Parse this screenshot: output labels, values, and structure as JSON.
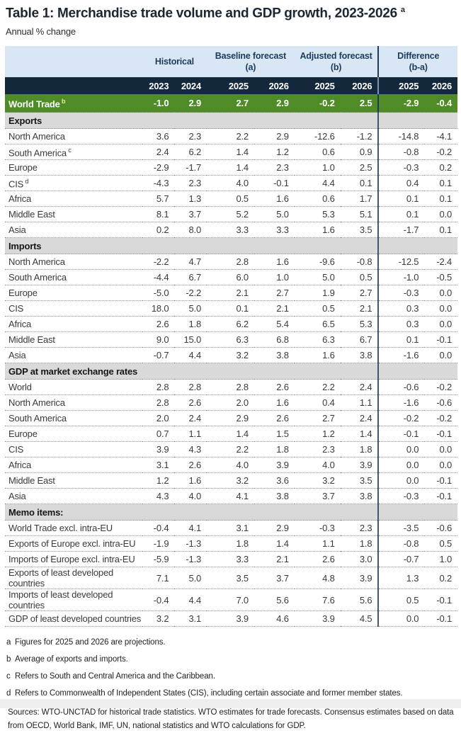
{
  "title": "Table 1: Merchandise trade volume and GDP growth, 2023-2026",
  "title_superscript": "a",
  "subtitle": "Annual % change",
  "table": {
    "col_groups": [
      {
        "label": "Historical",
        "sub": ""
      },
      {
        "label": "Baseline forecast",
        "sub": "(a)"
      },
      {
        "label": "Adjusted forecast",
        "sub": "(b)"
      },
      {
        "label": "Difference",
        "sub": "(b-a)"
      }
    ],
    "years": [
      "2023",
      "2024",
      "2025",
      "2026",
      "2025",
      "2026",
      "2025",
      "2026"
    ],
    "world_trade": {
      "label": "World Trade",
      "superscript": "b",
      "values": [
        "-1.0",
        "2.9",
        "2.7",
        "2.9",
        "-0.2",
        "2.5",
        "-2.9",
        "-0.4"
      ]
    },
    "sections": [
      {
        "header": "Exports",
        "rows": [
          {
            "label": "North America",
            "superscript": "",
            "values": [
              "3.6",
              "2.3",
              "2.2",
              "2.9",
              "-12.6",
              "-1.2",
              "-14.8",
              "-4.1"
            ]
          },
          {
            "label": "South America",
            "superscript": "c",
            "values": [
              "2.4",
              "6.2",
              "1.4",
              "1.2",
              "0.6",
              "0.9",
              "-0.8",
              "-0.2"
            ]
          },
          {
            "label": "Europe",
            "superscript": "",
            "values": [
              "-2.9",
              "-1.7",
              "1.4",
              "2.3",
              "1.0",
              "2.5",
              "-0.3",
              "0.2"
            ]
          },
          {
            "label": "CIS",
            "superscript": "d",
            "values": [
              "-4.3",
              "2.3",
              "4.0",
              "-0.1",
              "4.4",
              "0.1",
              "0.4",
              "0.1"
            ]
          },
          {
            "label": "Africa",
            "superscript": "",
            "values": [
              "5.7",
              "1.3",
              "0.5",
              "1.6",
              "0.6",
              "1.7",
              "0.1",
              "0.1"
            ]
          },
          {
            "label": "Middle East",
            "superscript": "",
            "values": [
              "8.1",
              "3.7",
              "5.2",
              "5.0",
              "5.3",
              "5.1",
              "0.1",
              "0.0"
            ]
          },
          {
            "label": "Asia",
            "superscript": "",
            "values": [
              "0.2",
              "8.0",
              "3.3",
              "3.3",
              "1.6",
              "3.5",
              "-1.7",
              "0.1"
            ]
          }
        ]
      },
      {
        "header": "Imports",
        "rows": [
          {
            "label": "North America",
            "superscript": "",
            "values": [
              "-2.2",
              "4.7",
              "2.8",
              "1.6",
              "-9.6",
              "-0.8",
              "-12.5",
              "-2.4"
            ]
          },
          {
            "label": "South America",
            "superscript": "",
            "values": [
              "-4.4",
              "6.7",
              "6.0",
              "1.0",
              "5.0",
              "0.5",
              "-1.0",
              "-0.5"
            ]
          },
          {
            "label": "Europe",
            "superscript": "",
            "values": [
              "-5.0",
              "-2.2",
              "2.1",
              "2.7",
              "1.9",
              "2.7",
              "-0.3",
              "0.0"
            ]
          },
          {
            "label": "CIS",
            "superscript": "",
            "values": [
              "18.0",
              "5.0",
              "0.1",
              "2.1",
              "0.5",
              "2.1",
              "0.3",
              "0.0"
            ]
          },
          {
            "label": "Africa",
            "superscript": "",
            "values": [
              "2.6",
              "1.8",
              "6.2",
              "5.4",
              "6.5",
              "5.3",
              "0.3",
              "0.0"
            ]
          },
          {
            "label": "Middle East",
            "superscript": "",
            "values": [
              "9.0",
              "15.0",
              "6.3",
              "6.8",
              "6.3",
              "6.7",
              "0.1",
              "-0.1"
            ]
          },
          {
            "label": "Asia",
            "superscript": "",
            "values": [
              "-0.7",
              "4.4",
              "3.2",
              "3.8",
              "1.6",
              "3.8",
              "-1.6",
              "0.0"
            ]
          }
        ]
      },
      {
        "header": "GDP at market exchange rates",
        "rows": [
          {
            "label": "World",
            "superscript": "",
            "values": [
              "2.8",
              "2.8",
              "2.8",
              "2.6",
              "2.2",
              "2.4",
              "-0.6",
              "-0.2"
            ]
          },
          {
            "label": "North America",
            "superscript": "",
            "values": [
              "2.8",
              "2.6",
              "2.0",
              "1.6",
              "0.4",
              "1.1",
              "-1.6",
              "-0.6"
            ]
          },
          {
            "label": "South America",
            "superscript": "",
            "values": [
              "2.0",
              "2.4",
              "2.9",
              "2.6",
              "2.7",
              "2.4",
              "-0.2",
              "-0.2"
            ]
          },
          {
            "label": "Europe",
            "superscript": "",
            "values": [
              "0.7",
              "1.1",
              "1.4",
              "1.5",
              "1.2",
              "1.4",
              "-0.1",
              "-0.1"
            ]
          },
          {
            "label": "CIS",
            "superscript": "",
            "values": [
              "3.9",
              "4.3",
              "2.2",
              "1.8",
              "2.3",
              "1.8",
              "0.0",
              "0.0"
            ]
          },
          {
            "label": "Africa",
            "superscript": "",
            "values": [
              "3.1",
              "2.6",
              "4.0",
              "3.9",
              "4.0",
              "3.9",
              "0.0",
              "0.0"
            ]
          },
          {
            "label": "Middle East",
            "superscript": "",
            "values": [
              "1.2",
              "1.6",
              "3.2",
              "3.6",
              "3.2",
              "3.5",
              "0.0",
              "-0.1"
            ]
          },
          {
            "label": "Asia",
            "superscript": "",
            "values": [
              "4.3",
              "4.0",
              "4.1",
              "3.8",
              "3.7",
              "3.8",
              "-0.3",
              "-0.1"
            ]
          }
        ]
      },
      {
        "header": "Memo items:",
        "rows": [
          {
            "label": "World Trade excl. intra-EU",
            "superscript": "",
            "values": [
              "-0.4",
              "4.1",
              "3.1",
              "2.9",
              "-0.3",
              "2.3",
              "-3.5",
              "-0.6"
            ]
          },
          {
            "label": "Exports of Europe excl. intra-EU",
            "superscript": "",
            "values": [
              "-1.9",
              "-1.3",
              "1.8",
              "1.4",
              "1.1",
              "1.8",
              "-0.8",
              "0.5"
            ]
          },
          {
            "label": "Imports of Europe excl. intra-EU",
            "superscript": "",
            "values": [
              "-5.9",
              "-1.3",
              "3.3",
              "2.1",
              "2.6",
              "3.0",
              "-0.7",
              "1.0"
            ]
          },
          {
            "label": "Exports of least developed countries",
            "superscript": "",
            "values": [
              "7.1",
              "5.0",
              "3.5",
              "3.7",
              "4.8",
              "3.9",
              "1.3",
              "0.2"
            ]
          },
          {
            "label": "Imports of least developed countries",
            "superscript": "",
            "values": [
              "-0.4",
              "4.4",
              "7.0",
              "5.6",
              "7.6",
              "5.6",
              "0.5",
              "-0.1"
            ]
          },
          {
            "label": "GDP of least developed countries",
            "superscript": "",
            "values": [
              "3.2",
              "3.1",
              "3.9",
              "4.6",
              "3.9",
              "4.5",
              "0.0",
              "-0.1"
            ]
          }
        ]
      }
    ]
  },
  "footnotes": [
    {
      "marker": "a",
      "text": "Figures for 2025 and 2026 are projections."
    },
    {
      "marker": "b",
      "text": "Average of exports and imports."
    },
    {
      "marker": "c",
      "text": "Refers to South and Central America and the Caribbean."
    },
    {
      "marker": "d",
      "text": "Refers to Commonwealth of Independent States (CIS), including certain associate and former member states."
    }
  ],
  "sources": "Sources: WTO-UNCTAD for historical trade statistics. WTO estimates for trade forecasts.  Consensus estimates based on data from OECD, World Bank, IMF, UN, national statistics and WTO calculations for GDP.",
  "colors": {
    "header_band": "#d9e6f3",
    "year_band": "#14283c",
    "world_trade_row": "#4f8c27",
    "section_row": "#d9d9d9",
    "divider": "#1e3a56"
  }
}
